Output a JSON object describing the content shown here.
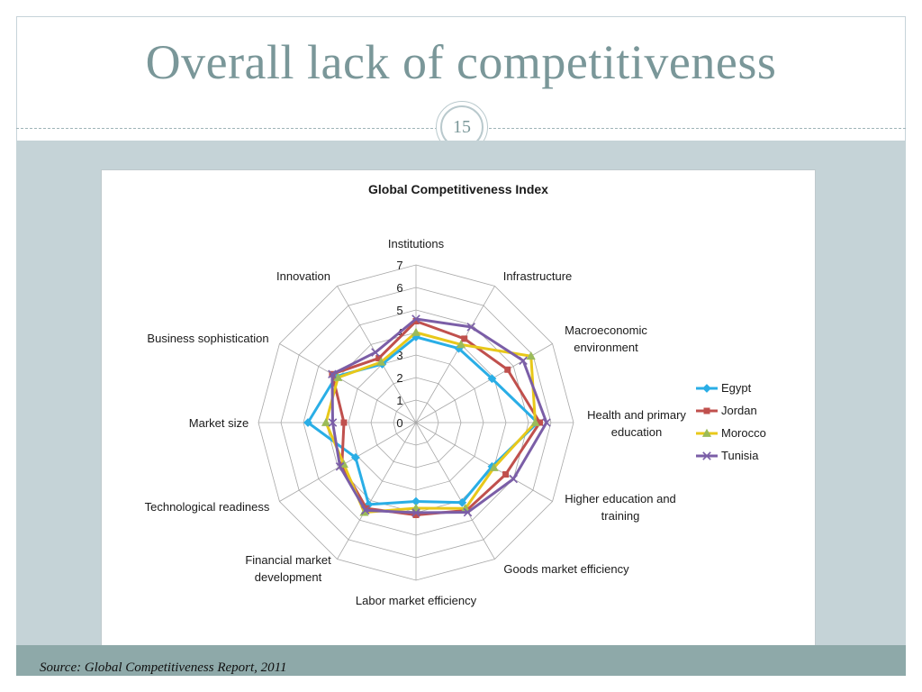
{
  "slide": {
    "title": "Overall lack of competitiveness",
    "number": "15",
    "source": "Source: Global Competitiveness Report, 2011"
  },
  "colors": {
    "Egypt": "#2aaee6",
    "Jordan": "#c0504d",
    "Morocco": "#e8c81a",
    "Tunisia": "#7b5ea7"
  },
  "chart_data": {
    "type": "radar",
    "title": "Global Competitiveness  Index",
    "categories": [
      "Institutions",
      "Infrastructure",
      "Macroeconomic environment",
      "Health and primary education",
      "Higher education and training",
      "Goods market efficiency",
      "Labor market efficiency",
      "Financial market development",
      "Technological readiness",
      "Market size",
      "Business sophistication",
      "Innovation"
    ],
    "range": [
      0,
      7
    ],
    "ticks": [
      "0",
      "1",
      "2",
      "3",
      "4",
      "5",
      "6",
      "7"
    ],
    "legend": "right",
    "series": [
      {
        "name": "Egypt",
        "marker": "diamond",
        "values": [
          3.8,
          3.8,
          3.9,
          5.4,
          3.9,
          4.1,
          3.5,
          4.2,
          3.1,
          4.8,
          4.1,
          3.0
        ]
      },
      {
        "name": "Jordan",
        "marker": "square",
        "values": [
          4.5,
          4.3,
          4.7,
          5.5,
          4.6,
          4.5,
          4.1,
          4.4,
          3.8,
          3.2,
          4.3,
          3.3
        ]
      },
      {
        "name": "Morocco",
        "marker": "triangle",
        "values": [
          4.0,
          4.0,
          5.9,
          5.3,
          4.0,
          4.4,
          3.8,
          4.6,
          3.7,
          4.0,
          4.0,
          3.1
        ]
      },
      {
        "name": "Tunisia",
        "marker": "x",
        "values": [
          4.6,
          4.9,
          5.5,
          5.8,
          5.0,
          4.6,
          4.0,
          4.5,
          3.9,
          3.7,
          4.3,
          3.6
        ]
      }
    ]
  }
}
